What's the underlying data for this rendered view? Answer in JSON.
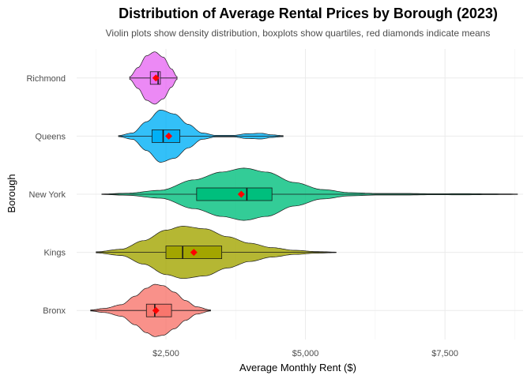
{
  "chart_data": {
    "type": "violin",
    "title": "Distribution of Average Rental Prices by Borough (2023)",
    "subtitle": "Violin plots show density distribution, boxplots show quartiles, red diamonds indicate means",
    "xlabel": "Average Monthly Rent ($)",
    "ylabel": "Borough",
    "xlim": [
      900,
      8900
    ],
    "x_ticks": [
      2500,
      5000,
      7500
    ],
    "x_tick_labels": [
      "$2,500",
      "$5,000",
      "$7,500"
    ],
    "categories": [
      "Bronx",
      "Kings",
      "New York",
      "Queens",
      "Richmond"
    ],
    "grid": true,
    "legend": "none",
    "mean_marker_color": "#ff0000",
    "series": [
      {
        "category": "Bronx",
        "color": "#f8766d",
        "min": 1150,
        "max": 3300,
        "q1": 2150,
        "median": 2300,
        "q3": 2600,
        "mean": 2320,
        "density": [
          [
            1150,
            0.02
          ],
          [
            1400,
            0.08
          ],
          [
            1700,
            0.22
          ],
          [
            1950,
            0.55
          ],
          [
            2150,
            0.85
          ],
          [
            2300,
            1.0
          ],
          [
            2450,
            0.95
          ],
          [
            2650,
            0.7
          ],
          [
            2850,
            0.38
          ],
          [
            3050,
            0.14
          ],
          [
            3300,
            0.02
          ]
        ]
      },
      {
        "category": "Kings",
        "color": "#a3a500",
        "min": 1250,
        "max": 5550,
        "q1": 2500,
        "median": 2800,
        "q3": 3500,
        "mean": 3000,
        "density": [
          [
            1250,
            0.02
          ],
          [
            1700,
            0.12
          ],
          [
            2100,
            0.45
          ],
          [
            2500,
            0.85
          ],
          [
            2800,
            1.0
          ],
          [
            3200,
            0.9
          ],
          [
            3600,
            0.6
          ],
          [
            4000,
            0.35
          ],
          [
            4400,
            0.18
          ],
          [
            4800,
            0.08
          ],
          [
            5200,
            0.03
          ],
          [
            5550,
            0.01
          ]
        ]
      },
      {
        "category": "New York",
        "color": "#00bf7d",
        "min": 1350,
        "max": 8800,
        "q1": 3050,
        "median": 3950,
        "q3": 4400,
        "mean": 3850,
        "density": [
          [
            1350,
            0.01
          ],
          [
            1800,
            0.04
          ],
          [
            2400,
            0.15
          ],
          [
            3000,
            0.55
          ],
          [
            3500,
            0.85
          ],
          [
            3900,
            1.0
          ],
          [
            4300,
            0.85
          ],
          [
            4800,
            0.45
          ],
          [
            5300,
            0.18
          ],
          [
            5800,
            0.06
          ],
          [
            6300,
            0.03
          ],
          [
            6800,
            0.03
          ],
          [
            7300,
            0.02
          ],
          [
            7800,
            0.025
          ],
          [
            8300,
            0.015
          ],
          [
            8800,
            0.01
          ]
        ]
      },
      {
        "category": "Queens",
        "color": "#00b0f6",
        "min": 1650,
        "max": 4600,
        "q1": 2250,
        "median": 2450,
        "q3": 2750,
        "mean": 2550,
        "density": [
          [
            1650,
            0.02
          ],
          [
            1900,
            0.12
          ],
          [
            2150,
            0.55
          ],
          [
            2400,
            1.0
          ],
          [
            2650,
            0.85
          ],
          [
            2900,
            0.45
          ],
          [
            3150,
            0.12
          ],
          [
            3400,
            0.03
          ],
          [
            3700,
            0.03
          ],
          [
            3950,
            0.09
          ],
          [
            4200,
            0.11
          ],
          [
            4400,
            0.05
          ],
          [
            4600,
            0.02
          ]
        ]
      },
      {
        "category": "Richmond",
        "color": "#e76bf3",
        "min": 1850,
        "max": 2700,
        "q1": 2220,
        "median": 2360,
        "q3": 2400,
        "mean": 2320,
        "density": [
          [
            1850,
            0.05
          ],
          [
            2000,
            0.4
          ],
          [
            2150,
            0.85
          ],
          [
            2300,
            1.0
          ],
          [
            2450,
            0.8
          ],
          [
            2600,
            0.35
          ],
          [
            2700,
            0.05
          ]
        ]
      }
    ]
  }
}
